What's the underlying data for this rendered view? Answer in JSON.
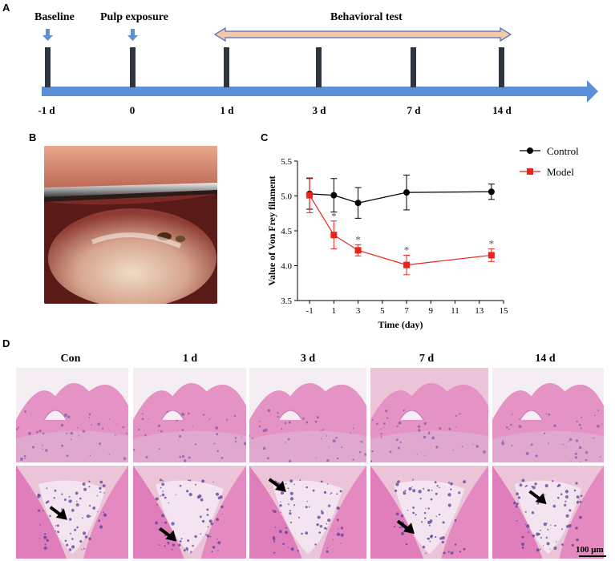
{
  "panels": {
    "a": "A",
    "b": "B",
    "c": "C",
    "d": "D"
  },
  "timeline": {
    "baseline_label": "Baseline",
    "pulp_label": "Pulp exposure",
    "behavioral_label": "Behavioral test",
    "days": [
      "-1 d",
      "0",
      "1 d",
      "3 d",
      "7 d",
      "14 d"
    ],
    "colors": {
      "axis": "#5b8fd8",
      "bar": "#2e3440",
      "arrow": "#f4c6aa"
    }
  },
  "chart_data": {
    "type": "line",
    "xlabel": "Time (day)",
    "ylabel": "Value of Von Frey filament",
    "xlim": [
      -2,
      15
    ],
    "ylim": [
      3.5,
      5.5
    ],
    "xticks": [
      -1,
      1,
      3,
      5,
      7,
      9,
      11,
      13,
      15
    ],
    "yticks": [
      3.5,
      4.0,
      4.5,
      5.0,
      5.5
    ],
    "x": [
      -1,
      1,
      3,
      7,
      14
    ],
    "legend_position": "top-right",
    "grid": false,
    "series": [
      {
        "name": "Control",
        "color": "#000000",
        "marker": "circle",
        "values": [
          5.03,
          5.01,
          4.9,
          5.05,
          5.06
        ],
        "errors": [
          0.22,
          0.24,
          0.22,
          0.25,
          0.11
        ]
      },
      {
        "name": "Model",
        "color": "#e8231a",
        "marker": "square",
        "values": [
          5.01,
          4.44,
          4.22,
          4.01,
          4.15
        ],
        "errors": [
          0.25,
          0.2,
          0.08,
          0.14,
          0.09
        ]
      }
    ],
    "significance": [
      {
        "x": 1,
        "label": "*"
      },
      {
        "x": 3,
        "label": "*"
      },
      {
        "x": 7,
        "label": "*"
      },
      {
        "x": 14,
        "label": "*"
      }
    ]
  },
  "histology": {
    "columns": [
      "Con",
      "1 d",
      "3 d",
      "7 d",
      "14 d"
    ],
    "scale_bar": "100 μm"
  }
}
